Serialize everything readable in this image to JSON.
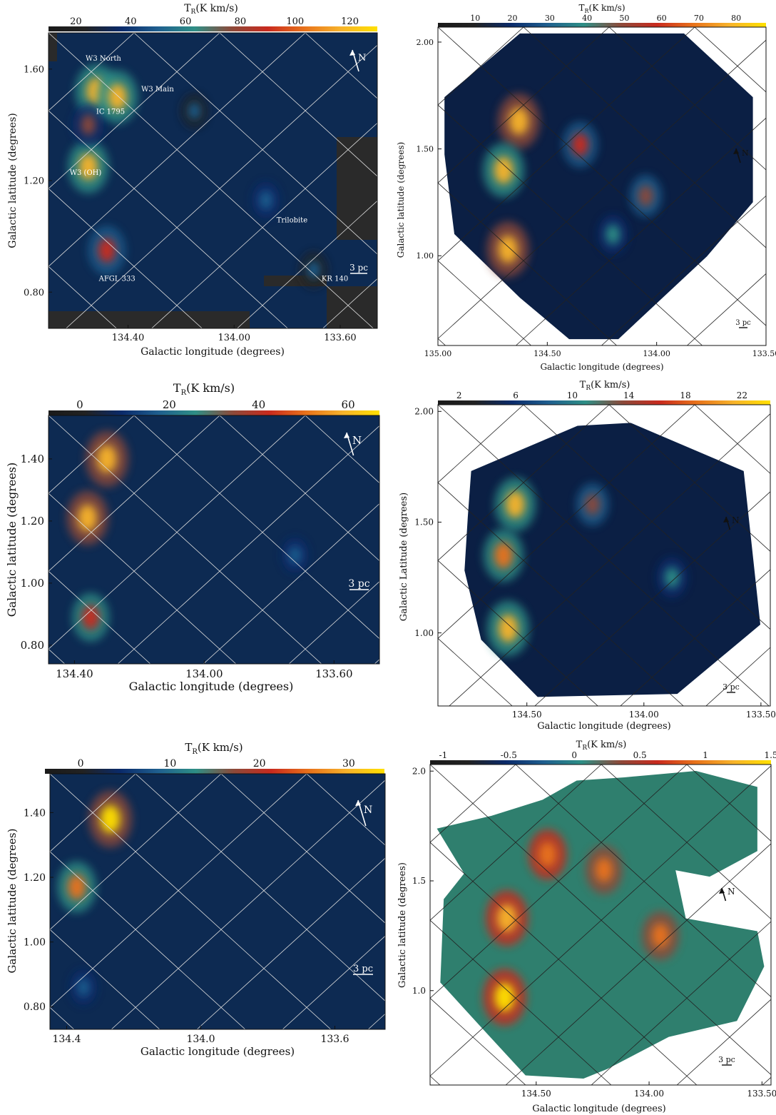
{
  "colors": {
    "cmap": [
      "#1a1a1a",
      "#222222",
      "#0a2a6a",
      "#1f5f8f",
      "#2e8f86",
      "#8c4a3a",
      "#c92a1e",
      "#e8721b",
      "#f7b32b",
      "#ffe000"
    ],
    "void_dark": "#2a2a2a",
    "map_bg": "#0d2a52",
    "white": "#ffffff",
    "grid_light": "#dddddd",
    "grid_dark": "#222222"
  },
  "chart_data": [
    {
      "id": "p1",
      "type": "heatmap",
      "frame": "rect",
      "ink": "light",
      "colorbar_title": "T_R(K km/s)",
      "cbar_ticks": [
        {
          "v": 20,
          "t": "20"
        },
        {
          "v": 40,
          "t": "40"
        },
        {
          "v": 60,
          "t": "60"
        },
        {
          "v": 80,
          "t": "80"
        },
        {
          "v": 100,
          "t": "100"
        },
        {
          "v": 120,
          "t": "120"
        }
      ],
      "cbar_range": [
        10,
        130
      ],
      "xlabel": "Galactic longitude (degrees)",
      "ylabel": "Galactic latitude (degrees)",
      "xlim": [
        134.7,
        133.46
      ],
      "ylim": [
        0.67,
        1.73
      ],
      "xticks": [
        {
          "v": 134.4,
          "t": "134.40"
        },
        {
          "v": 134.0,
          "t": "134.00"
        },
        {
          "v": 133.6,
          "t": "133.60"
        }
      ],
      "yticks": [
        {
          "v": 0.8,
          "t": "0.80"
        },
        {
          "v": 1.2,
          "t": "1.20"
        },
        {
          "v": 1.6,
          "t": "1.60"
        }
      ],
      "north_label": "N",
      "scalebar_label": "3 pc",
      "annotations": [
        {
          "text": "W3 North",
          "x": 134.56,
          "y": 1.63
        },
        {
          "text": "W3 Main",
          "x": 134.35,
          "y": 1.52
        },
        {
          "text": "IC 1795",
          "x": 134.52,
          "y": 1.44
        },
        {
          "text": "W3 (OH)",
          "x": 134.62,
          "y": 1.22
        },
        {
          "text": "Trilobite",
          "x": 133.84,
          "y": 1.05
        },
        {
          "text": "AFGL 333",
          "x": 134.51,
          "y": 0.84
        },
        {
          "text": "KR 140",
          "x": 133.67,
          "y": 0.84
        }
      ],
      "blobs": [
        {
          "x": 134.52,
          "y": 1.52,
          "v": 118
        },
        {
          "x": 134.44,
          "y": 1.5,
          "v": 112
        },
        {
          "x": 134.55,
          "y": 1.25,
          "v": 112
        },
        {
          "x": 134.48,
          "y": 0.95,
          "v": 95
        },
        {
          "x": 134.55,
          "y": 1.4,
          "v": 70
        },
        {
          "x": 133.88,
          "y": 1.13,
          "v": 55
        },
        {
          "x": 133.7,
          "y": 0.88,
          "v": 50
        },
        {
          "x": 134.15,
          "y": 1.45,
          "v": 45
        }
      ]
    },
    {
      "id": "p2",
      "type": "heatmap",
      "frame": "tilted",
      "ink": "dark",
      "colorbar_title": "T_R(K km/s)",
      "cbar_ticks": [
        {
          "v": 10,
          "t": "10"
        },
        {
          "v": 20,
          "t": "20"
        },
        {
          "v": 30,
          "t": "30"
        },
        {
          "v": 40,
          "t": "40"
        },
        {
          "v": 50,
          "t": "50"
        },
        {
          "v": 60,
          "t": "60"
        },
        {
          "v": 70,
          "t": "70"
        },
        {
          "v": 80,
          "t": "80"
        }
      ],
      "cbar_range": [
        0,
        88
      ],
      "xlabel": "Galactic longitude (degrees)",
      "ylabel": "Galactic latitude (degrees)",
      "xlim": [
        135.0,
        133.5
      ],
      "ylim": [
        0.58,
        2.07
      ],
      "xticks": [
        {
          "v": 135.0,
          "t": "135.00"
        },
        {
          "v": 134.5,
          "t": "134.50"
        },
        {
          "v": 134.0,
          "t": "134.00"
        },
        {
          "v": 133.5,
          "t": "133.50"
        }
      ],
      "yticks": [
        {
          "v": 1.0,
          "t": "1.00"
        },
        {
          "v": 1.5,
          "t": "1.50"
        },
        {
          "v": 2.0,
          "t": "2.00"
        }
      ],
      "north_label": "N",
      "scalebar_label": "3 pc",
      "annotations": [],
      "blobs": [
        {
          "x": 134.63,
          "y": 1.63,
          "v": 80
        },
        {
          "x": 134.7,
          "y": 1.4,
          "v": 78
        },
        {
          "x": 134.68,
          "y": 1.03,
          "v": 80
        },
        {
          "x": 134.35,
          "y": 1.52,
          "v": 55
        },
        {
          "x": 134.05,
          "y": 1.28,
          "v": 45
        },
        {
          "x": 134.2,
          "y": 1.1,
          "v": 40
        }
      ]
    },
    {
      "id": "p3",
      "type": "heatmap",
      "frame": "rect",
      "ink": "light",
      "colorbar_title": "T_R(K km/s)",
      "cbar_ticks": [
        {
          "v": 0,
          "t": "0"
        },
        {
          "v": 20,
          "t": "20"
        },
        {
          "v": 40,
          "t": "40"
        },
        {
          "v": 60,
          "t": "60"
        }
      ],
      "cbar_range": [
        -7,
        67
      ],
      "xlabel": "Galactic longitude (degrees)",
      "ylabel": "Galactic latitude (degrees)",
      "xlim": [
        134.48,
        133.46
      ],
      "ylim": [
        0.74,
        1.54
      ],
      "xticks": [
        {
          "v": 134.4,
          "t": "134.40"
        },
        {
          "v": 134.0,
          "t": "134.00"
        },
        {
          "v": 133.6,
          "t": "133.60"
        }
      ],
      "yticks": [
        {
          "v": 0.8,
          "t": "0.80"
        },
        {
          "v": 1.0,
          "t": "1.00"
        },
        {
          "v": 1.2,
          "t": "1.20"
        },
        {
          "v": 1.4,
          "t": "1.40"
        }
      ],
      "north_label": "N",
      "scalebar_label": "3 pc",
      "annotations": [],
      "blobs": [
        {
          "x": 134.3,
          "y": 1.4,
          "v": 62
        },
        {
          "x": 134.36,
          "y": 1.21,
          "v": 58
        },
        {
          "x": 134.35,
          "y": 0.89,
          "v": 45
        },
        {
          "x": 133.72,
          "y": 1.09,
          "v": 18
        }
      ]
    },
    {
      "id": "p4",
      "type": "heatmap",
      "frame": "tilted",
      "ink": "dark",
      "colorbar_title": "T_R(K km/s)",
      "cbar_ticks": [
        {
          "v": 2,
          "t": "2"
        },
        {
          "v": 6,
          "t": "6"
        },
        {
          "v": 10,
          "t": "10"
        },
        {
          "v": 14,
          "t": "14"
        },
        {
          "v": 18,
          "t": "18"
        },
        {
          "v": 22,
          "t": "22"
        }
      ],
      "cbar_range": [
        0.5,
        24
      ],
      "xlabel": "Galactic longitude (degrees)",
      "ylabel": "Galactic Latitude (degrees)",
      "xlim": [
        134.88,
        133.46
      ],
      "ylim": [
        0.67,
        2.03
      ],
      "xticks": [
        {
          "v": 134.5,
          "t": "134.50"
        },
        {
          "v": 134.0,
          "t": "134.00"
        },
        {
          "v": 133.5,
          "t": "133.50"
        }
      ],
      "yticks": [
        {
          "v": 1.0,
          "t": "1.00"
        },
        {
          "v": 1.5,
          "t": "1.50"
        },
        {
          "v": 2.0,
          "t": "2.00"
        }
      ],
      "north_label": "N",
      "scalebar_label": "3 pc",
      "annotations": [],
      "blobs": [
        {
          "x": 134.55,
          "y": 1.58,
          "v": 21
        },
        {
          "x": 134.6,
          "y": 1.35,
          "v": 20
        },
        {
          "x": 134.58,
          "y": 1.02,
          "v": 22
        },
        {
          "x": 134.22,
          "y": 1.58,
          "v": 13
        },
        {
          "x": 133.88,
          "y": 1.25,
          "v": 12
        }
      ]
    },
    {
      "id": "p5",
      "type": "heatmap",
      "frame": "rect",
      "ink": "light",
      "colorbar_title": "T_R(K km/s)",
      "cbar_ticks": [
        {
          "v": 0,
          "t": "0"
        },
        {
          "v": 10,
          "t": "10"
        },
        {
          "v": 20,
          "t": "20"
        },
        {
          "v": 30,
          "t": "30"
        }
      ],
      "cbar_range": [
        -4,
        34
      ],
      "xlabel": "Galactic longitude (degrees)",
      "ylabel": "Galactic latitude (degrees)",
      "xlim": [
        134.45,
        133.45
      ],
      "ylim": [
        0.73,
        1.52
      ],
      "xticks": [
        {
          "v": 134.4,
          "t": "134.4"
        },
        {
          "v": 134.0,
          "t": "134.0"
        },
        {
          "v": 133.6,
          "t": "133.6"
        }
      ],
      "yticks": [
        {
          "v": 0.8,
          "t": "0.80"
        },
        {
          "v": 1.0,
          "t": "1.00"
        },
        {
          "v": 1.2,
          "t": "1.20"
        },
        {
          "v": 1.4,
          "t": "1.40"
        }
      ],
      "north_label": "N",
      "scalebar_label": "3 pc",
      "annotations": [],
      "blobs": [
        {
          "x": 134.27,
          "y": 1.38,
          "v": 32
        },
        {
          "x": 134.37,
          "y": 1.17,
          "v": 26
        },
        {
          "x": 134.35,
          "y": 0.86,
          "v": 9
        }
      ]
    },
    {
      "id": "p6",
      "type": "heatmap",
      "frame": "tilted",
      "ink": "dark",
      "colorbar_title": "T_R(K km/s)",
      "cbar_ticks": [
        {
          "v": -1,
          "t": "-1"
        },
        {
          "v": -0.5,
          "t": "-0.5"
        },
        {
          "v": 0,
          "t": "0"
        },
        {
          "v": 0.5,
          "t": "0.5"
        },
        {
          "v": 1,
          "t": "1"
        },
        {
          "v": 1.5,
          "t": "1.5"
        }
      ],
      "cbar_range": [
        -1.1,
        1.5
      ],
      "xlabel": "Galactic longitude (degrees)",
      "ylabel": "Galactic latitude (degrees)",
      "xlim": [
        134.97,
        133.46
      ],
      "ylim": [
        0.57,
        2.03
      ],
      "xticks": [
        {
          "v": 134.5,
          "t": "134.50"
        },
        {
          "v": 134.0,
          "t": "134.00"
        },
        {
          "v": 133.5,
          "t": "133.50"
        }
      ],
      "yticks": [
        {
          "v": 1.0,
          "t": "1.0"
        },
        {
          "v": 1.5,
          "t": "1.5"
        },
        {
          "v": 2.0,
          "t": "2.0"
        }
      ],
      "north_label": "N",
      "scalebar_label": "3 pc",
      "annotations": [],
      "blobs": [
        {
          "x": 134.64,
          "y": 0.97,
          "v": 1.4
        },
        {
          "x": 134.63,
          "y": 1.33,
          "v": 1.3
        },
        {
          "x": 134.45,
          "y": 1.62,
          "v": 0.9
        },
        {
          "x": 134.2,
          "y": 1.55,
          "v": 0.8
        },
        {
          "x": 133.95,
          "y": 1.25,
          "v": 0.8
        }
      ]
    }
  ]
}
